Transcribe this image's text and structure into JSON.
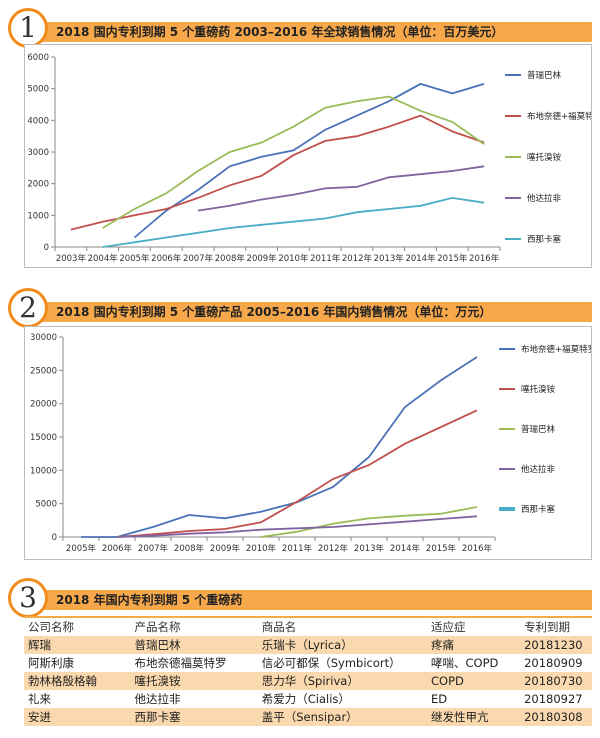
{
  "section1": {
    "number": "1",
    "title": "2018 国内专利到期 5 个重磅药 2003–2016 年全球销售情况（单位：百万美元）"
  },
  "section2": {
    "number": "2",
    "title": "2018 国内专利到期 5 个重磅产品 2005–2016 年国内销售情况（单位：万元）"
  },
  "section3": {
    "number": "3",
    "title": "2018 年国内专利到期 5 个重磅药"
  },
  "chart_data": [
    {
      "type": "line",
      "categories": [
        "2003年",
        "2004年",
        "2005年",
        "2006年",
        "2007年",
        "2008年",
        "2009年",
        "2010年",
        "2011年",
        "2012年",
        "2013年",
        "2014年",
        "2015年",
        "2016年"
      ],
      "ylim": [
        0,
        6000
      ],
      "yticks": [
        0,
        1000,
        2000,
        3000,
        4000,
        5000,
        6000
      ],
      "grid": false,
      "legend": "right",
      "series": [
        {
          "name": "普瑞巴林",
          "color": "#4a72b8",
          "values": [
            null,
            null,
            300,
            1150,
            1800,
            2550,
            2850,
            3050,
            3700,
            4150,
            4600,
            5150,
            4850,
            5150
          ]
        },
        {
          "name": "布地奈德+福莫特罗",
          "color": "#c0504d",
          "values": [
            550,
            800,
            1000,
            1200,
            1550,
            1950,
            2250,
            2900,
            3350,
            3500,
            3800,
            4150,
            3650,
            3300
          ]
        },
        {
          "name": "噻托溴铵",
          "color": "#9bbb59",
          "values": [
            null,
            600,
            1200,
            1700,
            2400,
            3000,
            3300,
            3800,
            4400,
            4600,
            4750,
            4300,
            3950,
            3250
          ]
        },
        {
          "name": "他达拉非",
          "color": "#8064a2",
          "values": [
            null,
            null,
            null,
            null,
            1150,
            1300,
            1500,
            1650,
            1850,
            1900,
            2200,
            2300,
            2400,
            2550
          ]
        },
        {
          "name": "西那卡塞",
          "color": "#4bacc6",
          "values": [
            null,
            0,
            150,
            300,
            450,
            600,
            700,
            800,
            900,
            1100,
            1200,
            1300,
            1550,
            1400
          ]
        }
      ]
    },
    {
      "type": "line",
      "categories": [
        "2005年",
        "2006年",
        "2007年",
        "2008年",
        "2009年",
        "2010年",
        "2011年",
        "2012年",
        "2013年",
        "2014年",
        "2015年",
        "2016年"
      ],
      "ylim": [
        0,
        30000
      ],
      "yticks": [
        0,
        5000,
        10000,
        15000,
        20000,
        25000,
        30000
      ],
      "grid": false,
      "legend": "right",
      "series": [
        {
          "name": "布地奈德+福莫特罗",
          "color": "#4a72b8",
          "values": [
            0,
            0,
            1500,
            3300,
            2800,
            3800,
            5200,
            7500,
            12000,
            19500,
            23500,
            27000
          ]
        },
        {
          "name": "噻托溴铵",
          "color": "#c0504d",
          "values": [
            null,
            0,
            400,
            900,
            1200,
            2200,
            5300,
            8700,
            10800,
            14000,
            16500,
            19000
          ]
        },
        {
          "name": "普瑞巴林",
          "color": "#9bbb59",
          "values": [
            null,
            null,
            null,
            null,
            null,
            0,
            800,
            2000,
            2800,
            3200,
            3500,
            4500
          ]
        },
        {
          "name": "他达拉非",
          "color": "#8064a2",
          "values": [
            null,
            0,
            200,
            500,
            700,
            1100,
            1300,
            1500,
            1900,
            2300,
            2700,
            3100
          ]
        },
        {
          "name": "西那卡塞",
          "color": "#4bacc6",
          "values": [
            null,
            null,
            null,
            null,
            null,
            null,
            null,
            null,
            null,
            null,
            null,
            0
          ]
        }
      ]
    },
    {
      "type": "table",
      "columns": [
        "公司名称",
        "产品名称",
        "商品名",
        "适应症",
        "专利到期"
      ],
      "rows": [
        [
          "辉瑞",
          "普瑞巴林",
          "乐瑞卡（Lyrica）",
          "疼痛",
          "20181230"
        ],
        [
          "阿斯利康",
          "布地奈德福莫特罗",
          "信必可都保（Symbicort）",
          "哮喘、COPD",
          "20180909"
        ],
        [
          "勃林格殷格翰",
          "噻托溴铵",
          "思力华（Spiriva）",
          "COPD",
          "20180730"
        ],
        [
          "礼来",
          "他达拉非",
          "希爱力（Cialis）",
          "ED",
          "20180927"
        ],
        [
          "安进",
          "西那卡塞",
          "盖平（Sensipar）",
          "继发性甲亢",
          "20180308"
        ]
      ]
    }
  ]
}
